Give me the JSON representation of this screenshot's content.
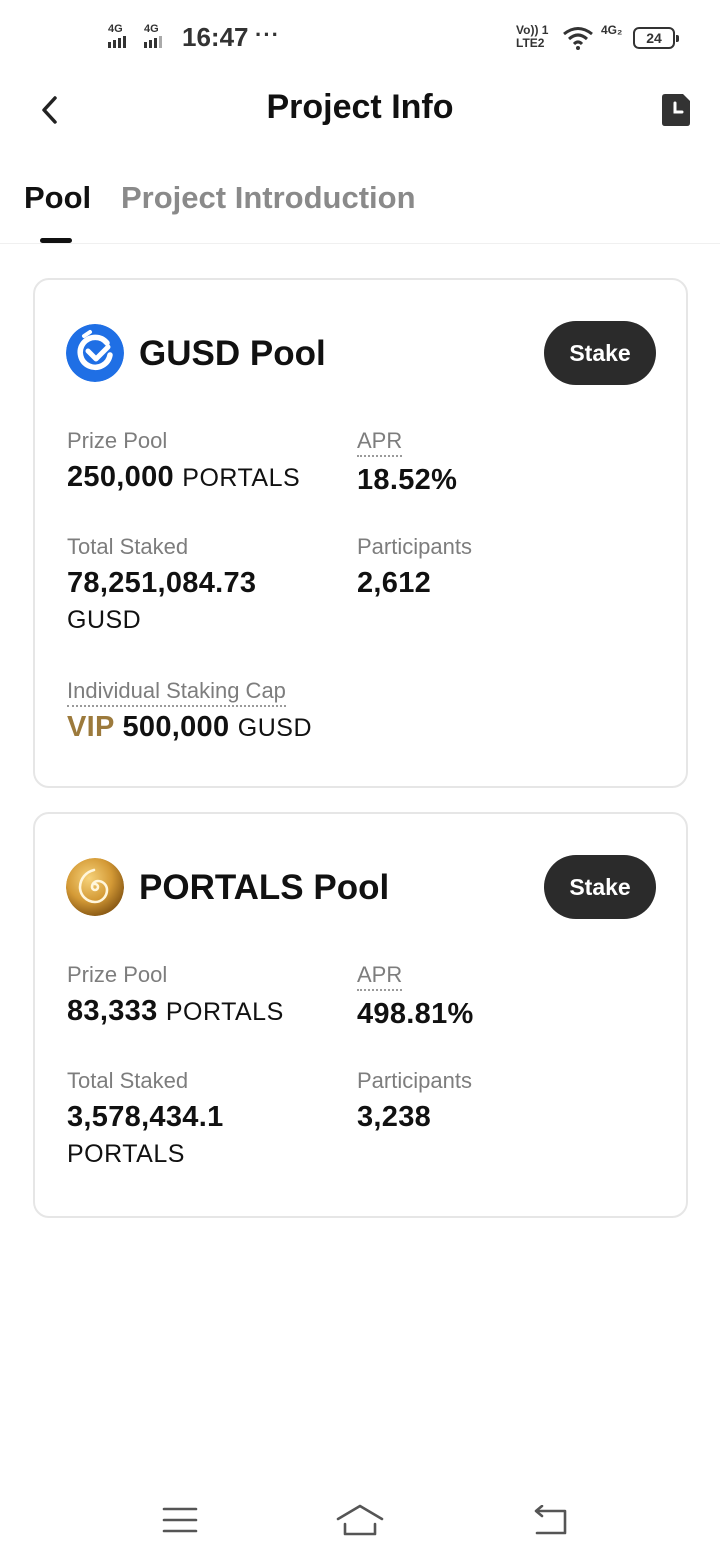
{
  "status_bar": {
    "sim1_label": "4G",
    "sim2_label": "4G",
    "time": "16:47",
    "more": "···",
    "volte_top": "Vo)) 1",
    "volte_bottom": "LTE2",
    "net2_label": "4G₂",
    "battery": "24"
  },
  "header": {
    "title": "Project Info",
    "back_icon": "chevron-left-icon",
    "record_icon": "document-clock-icon"
  },
  "tabs": [
    {
      "label": "Pool",
      "active": true
    },
    {
      "label": "Project Introduction",
      "active": false
    }
  ],
  "pools": [
    {
      "name": "GUSD Pool",
      "icon": "gusd-coin-icon",
      "stake_label": "Stake",
      "prize_pool_label": "Prize Pool",
      "prize_pool_value": "250,000",
      "prize_pool_unit": "PORTALS",
      "apr_label": "APR",
      "apr_value": "18.52%",
      "total_staked_label": "Total Staked",
      "total_staked_value": "78,251,084.73",
      "total_staked_unit": "GUSD",
      "participants_label": "Participants",
      "participants_value": "2,612",
      "cap_label": "Individual Staking Cap",
      "cap_prefix": "VIP",
      "cap_value": "500,000",
      "cap_unit": "GUSD"
    },
    {
      "name": "PORTALS Pool",
      "icon": "portals-coin-icon",
      "stake_label": "Stake",
      "prize_pool_label": "Prize Pool",
      "prize_pool_value": "83,333",
      "prize_pool_unit": "PORTALS",
      "apr_label": "APR",
      "apr_value": "498.81%",
      "total_staked_label": "Total Staked",
      "total_staked_value": "3,578,434.1",
      "total_staked_unit": "PORTALS",
      "participants_label": "Participants",
      "participants_value": "3,238"
    }
  ],
  "colors": {
    "accent_dark": "#2b2b2b",
    "vip_gold": "#9c7a3c",
    "gusd_blue": "#1f6fe5",
    "portals_gold": "#c8902e",
    "muted_text": "#7d7d7d"
  },
  "bottom_nav": {
    "menu_icon": "menu-icon",
    "home_icon": "home-icon",
    "back_icon": "back-arrow-icon"
  }
}
